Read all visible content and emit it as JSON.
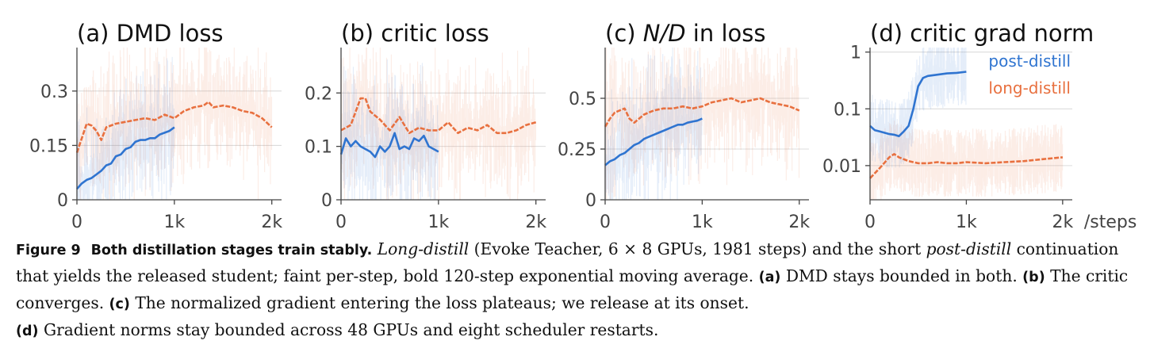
{
  "colors": {
    "post_distill": "#2f74d0",
    "long_distill": "#e8703f",
    "axis": "#444444",
    "grid": "#dcdcdc"
  },
  "chart_data": [
    {
      "type": "line",
      "title": "(a) DMD loss",
      "xlabel": "",
      "ylabel": "",
      "xlim": [
        0,
        2100
      ],
      "ylim": [
        0,
        0.42
      ],
      "yscale": "linear",
      "xticks": [
        0,
        1000,
        2000
      ],
      "xtick_labels": [
        "0",
        "1k",
        "2k"
      ],
      "yticks": [
        0,
        0.15,
        0.3
      ],
      "ytick_labels": [
        "0",
        "0.15",
        "0.3"
      ],
      "grid": "horizontal",
      "series": [
        {
          "name": "long-distill",
          "style": "dashed",
          "x": [
            0,
            100,
            150,
            200,
            250,
            300,
            400,
            500,
            600,
            700,
            800,
            900,
            1000,
            1100,
            1200,
            1300,
            1350,
            1400,
            1500,
            1600,
            1700,
            1800,
            1900,
            2000
          ],
          "y": [
            0.13,
            0.21,
            0.205,
            0.19,
            0.165,
            0.2,
            0.21,
            0.215,
            0.22,
            0.225,
            0.22,
            0.235,
            0.225,
            0.245,
            0.255,
            0.26,
            0.27,
            0.255,
            0.26,
            0.255,
            0.245,
            0.24,
            0.225,
            0.2
          ]
        },
        {
          "name": "post-distill",
          "style": "solid",
          "x": [
            0,
            50,
            100,
            150,
            200,
            250,
            300,
            350,
            400,
            450,
            500,
            550,
            600,
            650,
            700,
            750,
            800,
            850,
            900,
            950,
            1000
          ],
          "y": [
            0.03,
            0.045,
            0.055,
            0.06,
            0.07,
            0.08,
            0.095,
            0.1,
            0.12,
            0.125,
            0.14,
            0.145,
            0.16,
            0.165,
            0.165,
            0.17,
            0.17,
            0.18,
            0.185,
            0.19,
            0.2
          ]
        }
      ]
    },
    {
      "type": "line",
      "title": "(b) critic loss",
      "xlabel": "",
      "ylabel": "",
      "xlim": [
        0,
        2100
      ],
      "ylim": [
        0,
        0.285
      ],
      "yscale": "linear",
      "xticks": [
        0,
        1000,
        2000
      ],
      "xtick_labels": [
        "0",
        "1k",
        "2k"
      ],
      "yticks": [
        0,
        0.1,
        0.2
      ],
      "ytick_labels": [
        "0",
        "0.1",
        "0.2"
      ],
      "grid": "horizontal",
      "series": [
        {
          "name": "long-distill",
          "style": "dashed",
          "x": [
            0,
            100,
            200,
            250,
            300,
            400,
            500,
            600,
            700,
            800,
            900,
            1000,
            1100,
            1200,
            1300,
            1400,
            1500,
            1600,
            1700,
            1800,
            1900,
            2000
          ],
          "y": [
            0.13,
            0.14,
            0.19,
            0.19,
            0.165,
            0.15,
            0.13,
            0.155,
            0.125,
            0.135,
            0.13,
            0.13,
            0.145,
            0.125,
            0.135,
            0.13,
            0.14,
            0.125,
            0.125,
            0.13,
            0.14,
            0.145
          ]
        },
        {
          "name": "post-distill",
          "style": "solid",
          "x": [
            0,
            50,
            100,
            150,
            200,
            250,
            300,
            350,
            400,
            450,
            500,
            550,
            600,
            650,
            700,
            750,
            800,
            850,
            900,
            950,
            1000
          ],
          "y": [
            0.085,
            0.115,
            0.1,
            0.11,
            0.1,
            0.095,
            0.09,
            0.08,
            0.1,
            0.09,
            0.1,
            0.125,
            0.095,
            0.1,
            0.095,
            0.115,
            0.11,
            0.12,
            0.1,
            0.095,
            0.09
          ]
        }
      ]
    },
    {
      "type": "line",
      "title": "(c) N/D in loss",
      "xlabel": "",
      "ylabel": "",
      "xlim": [
        0,
        2100
      ],
      "ylim": [
        0,
        0.75
      ],
      "yscale": "linear",
      "xticks": [
        0,
        1000,
        2000
      ],
      "xtick_labels": [
        "0",
        "1k",
        "2k"
      ],
      "yticks": [
        0.25,
        0.5
      ],
      "ytick_labels": [
        "0.25",
        "0.5"
      ],
      "extra_tick_labels": [
        {
          "at": 0,
          "label": "0"
        }
      ],
      "grid": "horizontal",
      "series": [
        {
          "name": "long-distill",
          "style": "dashed",
          "x": [
            0,
            50,
            100,
            200,
            250,
            300,
            400,
            500,
            600,
            700,
            800,
            900,
            1000,
            1100,
            1200,
            1300,
            1400,
            1500,
            1600,
            1700,
            1800,
            1900,
            2000
          ],
          "y": [
            0.36,
            0.4,
            0.43,
            0.45,
            0.4,
            0.38,
            0.42,
            0.44,
            0.45,
            0.45,
            0.46,
            0.45,
            0.46,
            0.48,
            0.49,
            0.5,
            0.48,
            0.49,
            0.5,
            0.48,
            0.47,
            0.46,
            0.44
          ]
        },
        {
          "name": "post-distill",
          "style": "solid",
          "x": [
            0,
            50,
            100,
            150,
            200,
            250,
            300,
            350,
            400,
            450,
            500,
            550,
            600,
            650,
            700,
            750,
            800,
            850,
            900,
            950,
            1000
          ],
          "y": [
            0.17,
            0.19,
            0.2,
            0.22,
            0.23,
            0.25,
            0.27,
            0.28,
            0.3,
            0.31,
            0.32,
            0.33,
            0.34,
            0.35,
            0.36,
            0.37,
            0.37,
            0.38,
            0.385,
            0.39,
            0.4
          ]
        }
      ]
    },
    {
      "type": "line",
      "title": "(d) critic grad norm",
      "xlabel": "/steps",
      "ylabel": "",
      "xlim": [
        0,
        2100
      ],
      "ylim": [
        0.0025,
        1.2
      ],
      "yscale": "log",
      "xticks": [
        0,
        1000,
        2000
      ],
      "xtick_labels": [
        "0",
        "1k",
        "2k"
      ],
      "yticks": [
        0.01,
        0.1,
        1
      ],
      "ytick_labels": [
        "0.01",
        "0.1",
        "1"
      ],
      "grid": "horizontal",
      "legend": {
        "placement": "top-right",
        "entries": [
          "post-distill",
          "long-distill"
        ]
      },
      "series": [
        {
          "name": "long-distill",
          "style": "dashed",
          "x": [
            0,
            100,
            200,
            250,
            300,
            400,
            500,
            600,
            700,
            800,
            900,
            1000,
            1200,
            1400,
            1600,
            1800,
            2000
          ],
          "y": [
            0.006,
            0.009,
            0.014,
            0.016,
            0.014,
            0.012,
            0.011,
            0.011,
            0.0115,
            0.011,
            0.011,
            0.0115,
            0.011,
            0.0115,
            0.012,
            0.013,
            0.014
          ]
        },
        {
          "name": "post-distill",
          "style": "solid",
          "x": [
            0,
            50,
            100,
            200,
            250,
            300,
            350,
            400,
            450,
            500,
            550,
            600,
            700,
            800,
            900,
            1000
          ],
          "y": [
            0.05,
            0.042,
            0.04,
            0.036,
            0.035,
            0.033,
            0.04,
            0.05,
            0.1,
            0.25,
            0.35,
            0.38,
            0.4,
            0.42,
            0.43,
            0.45
          ]
        }
      ]
    }
  ],
  "caption": {
    "figure_label": "Figure 9",
    "heading": "Both distillation stages train stably.",
    "long_distill": "Long-distill",
    "part1": " (Evoke Teacher, 6 × 8 GPUs, 1981 steps) and the short ",
    "post_distill": "post-distill",
    "part2": " continuation that yields the released student; faint per-step, bold 120-step exponential moving average. ",
    "a_label": "(a)",
    "a_text": " DMD stays bounded in both. ",
    "b_label": "(b)",
    "b_text": " The critic converges. ",
    "c_label": "(c)",
    "c_text": " The normalized gradient entering the loss plateaus; we release at its onset.",
    "d_label": "(d)",
    "d_text": " Gradient norms stay bounded across 48 GPUs and eight scheduler restarts."
  }
}
